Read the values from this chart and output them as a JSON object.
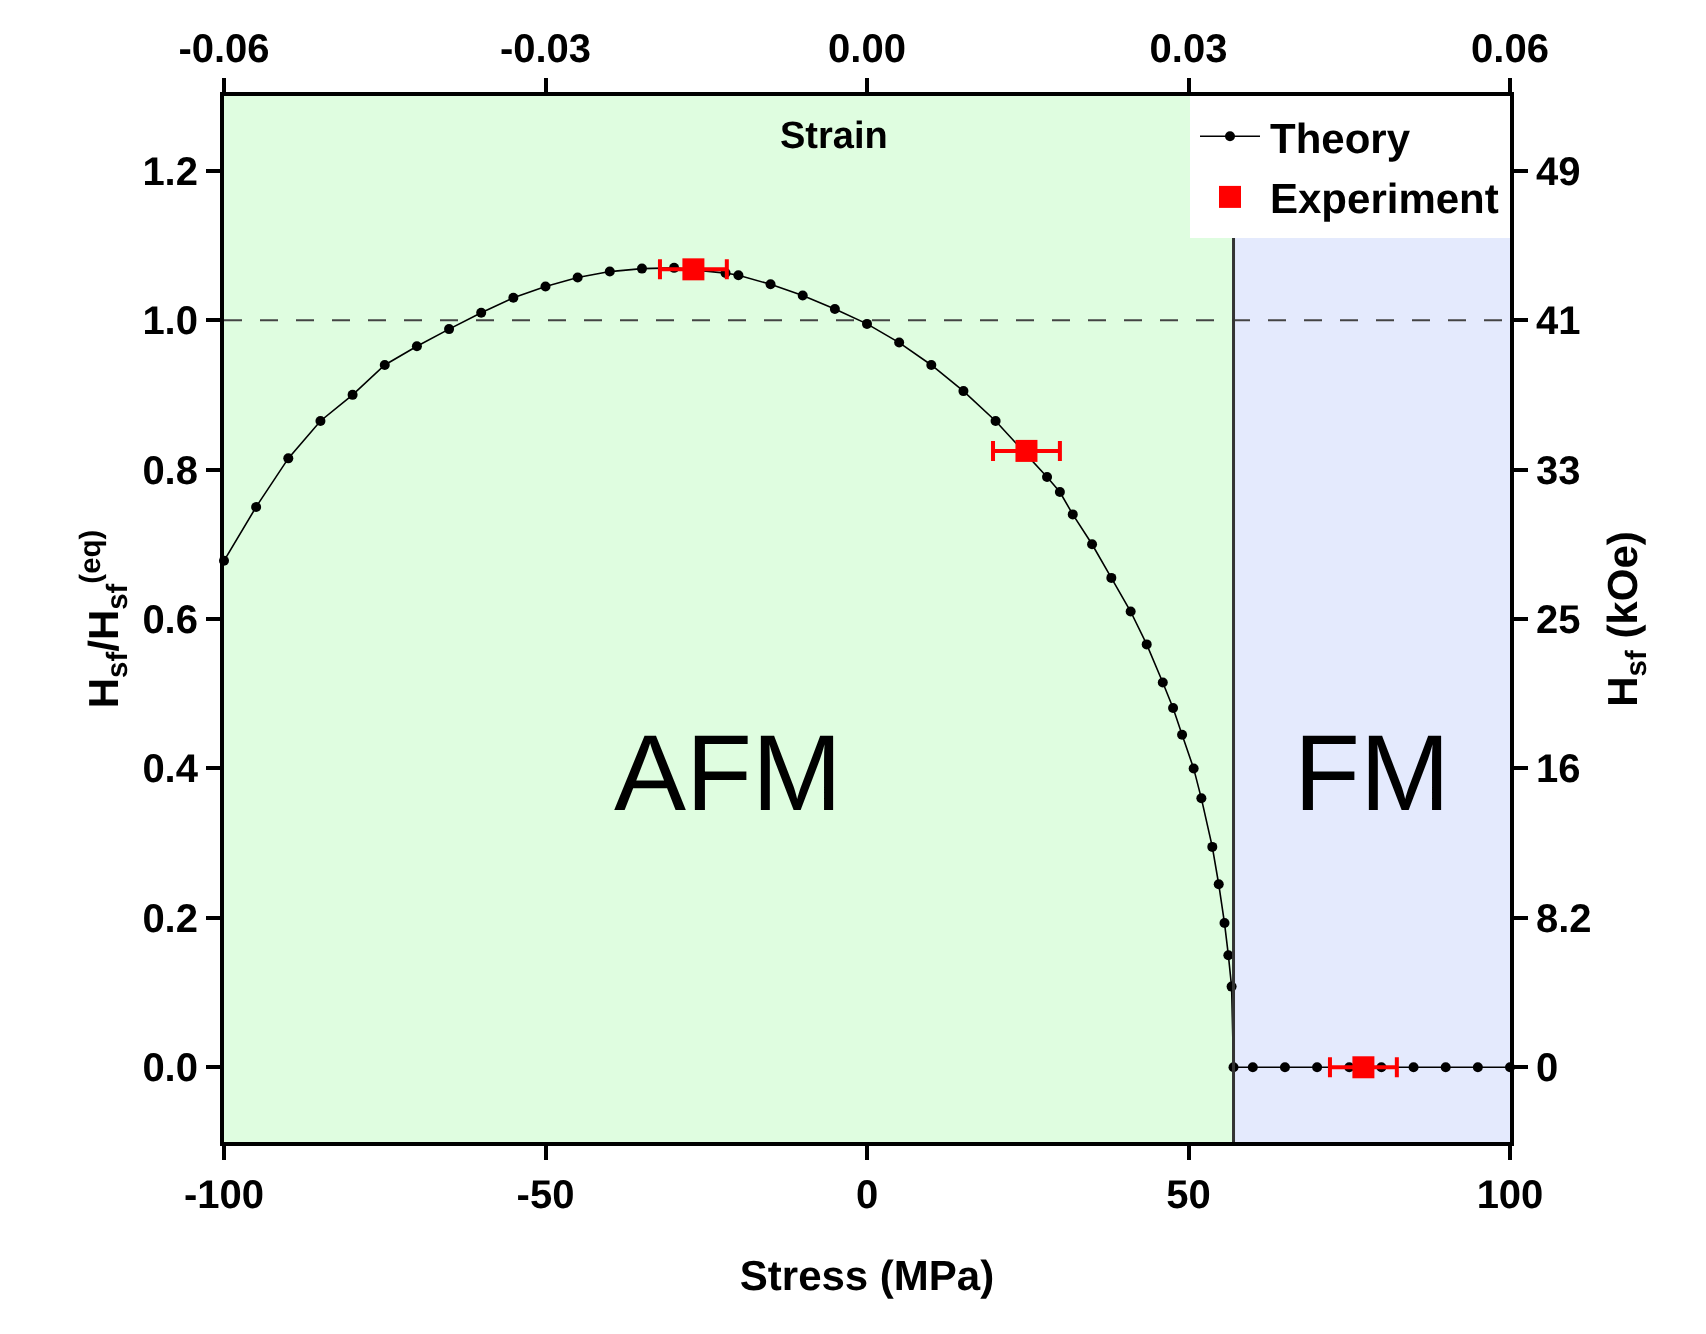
{
  "chart_data": {
    "type": "line",
    "xlabel": "Stress (MPa)",
    "ylabel": "H$_{sf}$/H$_{sf}$$^{(eq)}$",
    "y2label": "H$_{sf}$ (kOe)",
    "x2label": "Strain",
    "xlim": [
      -100,
      100
    ],
    "xticks": [
      -100,
      -50,
      0,
      50,
      100
    ],
    "x2lim": [
      -0.06,
      0.06
    ],
    "x2ticks": [
      {
        "value": -0.06,
        "label": "-0.06"
      },
      {
        "value": -0.03,
        "label": "-0.03"
      },
      {
        "value": 0,
        "label": "0.00"
      },
      {
        "value": 0.03,
        "label": "0.03"
      },
      {
        "value": 0.06,
        "label": "0.06"
      }
    ],
    "ylim": [
      -0.1,
      1.3
    ],
    "yticks": [
      {
        "value": 0,
        "label": "0.0"
      },
      {
        "value": 0.2,
        "label": "0.2"
      },
      {
        "value": 0.4,
        "label": "0.4"
      },
      {
        "value": 0.6,
        "label": "0.6"
      },
      {
        "value": 0.8,
        "label": "0.8"
      },
      {
        "value": 1,
        "label": "1.0"
      },
      {
        "value": 1.2,
        "label": "1.2"
      }
    ],
    "y2lim": [
      -4.1,
      53.3
    ],
    "y2ticks": [
      0,
      8.2,
      {
        "value": 16.4,
        "label": "16"
      },
      {
        "value": 24.6,
        "label": "25"
      },
      {
        "value": 32.8,
        "label": "33"
      },
      41,
      {
        "value": 49.2,
        "label": "49"
      }
    ],
    "series": [
      {
        "name": "Theory",
        "color": "#000000",
        "marker": "circle",
        "line_style": "solid",
        "x": [
          -100,
          -95,
          -90,
          -85,
          -80,
          -75,
          -70,
          -65,
          -60,
          -55,
          -50,
          -45,
          -40,
          -35,
          -30,
          -22,
          -20,
          -15,
          -10,
          -5,
          0,
          5,
          10,
          15,
          20,
          28,
          30,
          32,
          35,
          38,
          41,
          43.5,
          46,
          47.6,
          49,
          50.8,
          52,
          53.7,
          54.7,
          55.6,
          56.2,
          56.7,
          57,
          60,
          65,
          70,
          75,
          80,
          85,
          90,
          95,
          100
        ],
        "values": [
          0.678,
          0.75,
          0.815,
          0.865,
          0.9,
          0.94,
          0.965,
          0.988,
          1.01,
          1.03,
          1.045,
          1.057,
          1.065,
          1.069,
          1.07,
          1.063,
          1.06,
          1.048,
          1.033,
          1.015,
          0.995,
          0.97,
          0.94,
          0.905,
          0.865,
          0.79,
          0.77,
          0.74,
          0.7,
          0.655,
          0.61,
          0.566,
          0.515,
          0.481,
          0.445,
          0.4,
          0.36,
          0.295,
          0.245,
          0.193,
          0.15,
          0.108,
          0,
          0,
          0,
          0,
          0,
          0,
          0,
          0,
          0,
          0
        ]
      },
      {
        "name": "Experiment",
        "type": "scatter",
        "color": "#ff0000",
        "marker": "square",
        "x": [
          -27,
          24.8,
          77.2
        ],
        "values": [
          1.068,
          0.825,
          0
        ],
        "xerrors": [
          5.2,
          5.2,
          5.2
        ]
      }
    ],
    "ref_lines": [
      {
        "axis": "y",
        "value": 1,
        "color": "#444444",
        "line_style": "dashed"
      },
      {
        "axis": "x",
        "value": 57,
        "color": "#333333",
        "line_style": "solid"
      }
    ],
    "bands": [
      {
        "axis": "x",
        "from": -100,
        "to": 57,
        "label": "AFM",
        "color": "#dffde0"
      },
      {
        "axis": "x",
        "from": 57,
        "to": 100,
        "label": "FM",
        "color": "#e4eafd"
      }
    ],
    "grid": false,
    "legend": "top right"
  }
}
